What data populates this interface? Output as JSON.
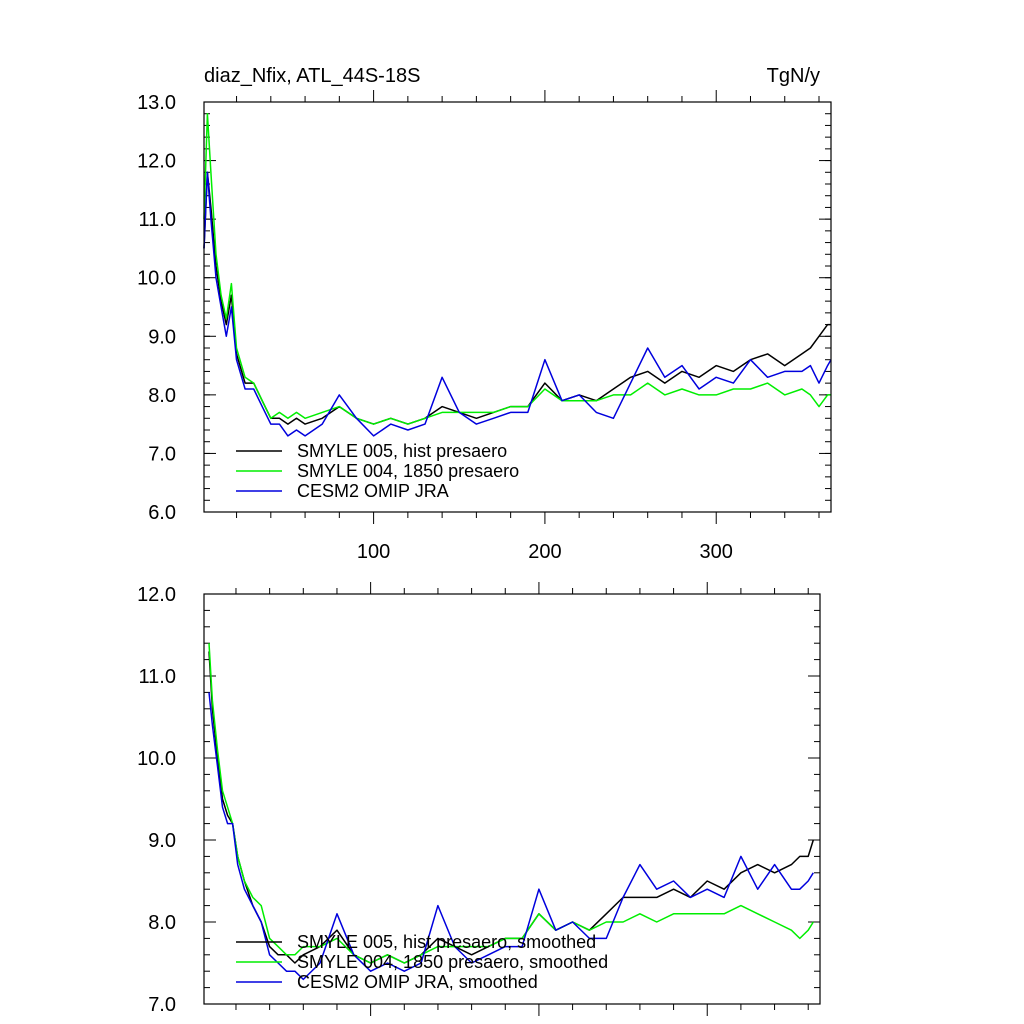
{
  "chart_data": [
    {
      "type": "line",
      "title": "diaz_Nfix, ATL_44S-18S",
      "units": "TgN/y",
      "xlim": [
        1,
        367
      ],
      "ylim": [
        6.0,
        13.0
      ],
      "xticks": [
        100,
        200,
        300
      ],
      "xtick_labels": [
        "100",
        "200",
        "300"
      ],
      "yticks": [
        6.0,
        7.0,
        8.0,
        9.0,
        10.0,
        11.0,
        12.0,
        13.0
      ],
      "ytick_labels": [
        "6.0",
        "7.0",
        "8.0",
        "9.0",
        "10.0",
        "11.0",
        "12.0",
        "13.0"
      ],
      "legend_position": "bottom-left",
      "series": [
        {
          "name": "SMYLE 005, hist presaero",
          "color": "#000000",
          "x": [
            1,
            3,
            5,
            8,
            11,
            14,
            17,
            20,
            25,
            30,
            35,
            40,
            45,
            50,
            55,
            60,
            70,
            80,
            90,
            100,
            110,
            120,
            130,
            140,
            150,
            160,
            170,
            180,
            190,
            200,
            210,
            220,
            230,
            240,
            250,
            260,
            270,
            280,
            290,
            300,
            310,
            320,
            330,
            340,
            350,
            355,
            360,
            365,
            367
          ],
          "y": [
            10.5,
            11.8,
            11.2,
            10.2,
            9.6,
            9.2,
            9.7,
            8.7,
            8.2,
            8.2,
            7.9,
            7.6,
            7.6,
            7.5,
            7.6,
            7.5,
            7.6,
            7.8,
            7.6,
            7.5,
            7.6,
            7.5,
            7.6,
            7.8,
            7.7,
            7.6,
            7.7,
            7.8,
            7.8,
            8.2,
            7.9,
            8.0,
            7.9,
            8.1,
            8.3,
            8.4,
            8.2,
            8.4,
            8.3,
            8.5,
            8.4,
            8.6,
            8.7,
            8.5,
            8.7,
            8.8,
            9.0,
            9.2,
            9.2
          ]
        },
        {
          "name": "SMYLE 004, 1850 presaero",
          "color": "#00ee00",
          "x": [
            1,
            3,
            5,
            8,
            11,
            14,
            17,
            20,
            25,
            30,
            35,
            40,
            45,
            50,
            55,
            60,
            70,
            80,
            90,
            100,
            110,
            120,
            130,
            140,
            150,
            160,
            170,
            180,
            190,
            200,
            210,
            220,
            230,
            240,
            250,
            260,
            270,
            280,
            290,
            300,
            310,
            320,
            330,
            340,
            350,
            355,
            360,
            365,
            367
          ],
          "y": [
            11.0,
            12.8,
            11.8,
            10.4,
            9.7,
            9.3,
            9.9,
            8.8,
            8.3,
            8.2,
            7.9,
            7.6,
            7.7,
            7.6,
            7.7,
            7.6,
            7.7,
            7.8,
            7.6,
            7.5,
            7.6,
            7.5,
            7.6,
            7.7,
            7.7,
            7.7,
            7.7,
            7.8,
            7.8,
            8.1,
            7.9,
            7.9,
            7.9,
            8.0,
            8.0,
            8.2,
            8.0,
            8.1,
            8.0,
            8.0,
            8.1,
            8.1,
            8.2,
            8.0,
            8.1,
            8.0,
            7.8,
            8.0,
            8.0
          ]
        },
        {
          "name": "CESM2 OMIP JRA",
          "color": "#0000dd",
          "x": [
            1,
            3,
            5,
            8,
            11,
            14,
            17,
            20,
            25,
            30,
            35,
            40,
            45,
            50,
            55,
            60,
            70,
            80,
            90,
            100,
            110,
            120,
            130,
            140,
            150,
            160,
            170,
            180,
            190,
            200,
            210,
            220,
            230,
            240,
            250,
            260,
            270,
            280,
            290,
            300,
            310,
            320,
            330,
            340,
            350,
            355,
            360,
            365,
            367
          ],
          "y": [
            10.5,
            11.8,
            11.0,
            10.0,
            9.5,
            9.0,
            9.5,
            8.6,
            8.1,
            8.1,
            7.8,
            7.5,
            7.5,
            7.3,
            7.4,
            7.3,
            7.5,
            8.0,
            7.6,
            7.3,
            7.5,
            7.4,
            7.5,
            8.3,
            7.7,
            7.5,
            7.6,
            7.7,
            7.7,
            8.6,
            7.9,
            8.0,
            7.7,
            7.6,
            8.2,
            8.8,
            8.3,
            8.5,
            8.1,
            8.3,
            8.2,
            8.6,
            8.3,
            8.4,
            8.4,
            8.5,
            8.2,
            8.5,
            8.6
          ]
        }
      ]
    },
    {
      "type": "line",
      "xlim": [
        1,
        367
      ],
      "ylim": [
        7.0,
        12.0
      ],
      "xticks": [
        100,
        200,
        300
      ],
      "yticks": [
        7.0,
        8.0,
        9.0,
        10.0,
        11.0,
        12.0
      ],
      "ytick_labels": [
        "7.0",
        "8.0",
        "9.0",
        "10.0",
        "11.0",
        "12.0"
      ],
      "legend_position": "bottom-left",
      "series": [
        {
          "name": "SMYLE 005, hist presaero, smoothed",
          "color": "#000000",
          "x": [
            4,
            6,
            9,
            12,
            15,
            18,
            21,
            25,
            30,
            35,
            40,
            45,
            50,
            55,
            60,
            70,
            80,
            90,
            100,
            110,
            120,
            130,
            140,
            150,
            160,
            170,
            180,
            190,
            200,
            210,
            220,
            230,
            240,
            250,
            260,
            270,
            280,
            290,
            300,
            310,
            320,
            330,
            340,
            350,
            355,
            360,
            363
          ],
          "y": [
            11.3,
            10.6,
            10.0,
            9.5,
            9.3,
            9.2,
            8.8,
            8.5,
            8.2,
            8.0,
            7.7,
            7.6,
            7.6,
            7.5,
            7.6,
            7.7,
            7.9,
            7.6,
            7.5,
            7.6,
            7.5,
            7.6,
            7.8,
            7.7,
            7.6,
            7.7,
            7.8,
            7.8,
            8.1,
            7.9,
            8.0,
            7.9,
            8.1,
            8.3,
            8.3,
            8.3,
            8.4,
            8.3,
            8.5,
            8.4,
            8.6,
            8.7,
            8.6,
            8.7,
            8.8,
            8.8,
            9.0
          ]
        },
        {
          "name": "SMYLE 004, 1850 presaero, smoothed",
          "color": "#00ee00",
          "x": [
            4,
            6,
            9,
            12,
            15,
            18,
            21,
            25,
            30,
            35,
            40,
            45,
            50,
            55,
            60,
            70,
            80,
            90,
            100,
            110,
            120,
            130,
            140,
            150,
            160,
            170,
            180,
            190,
            200,
            210,
            220,
            230,
            240,
            250,
            260,
            270,
            280,
            290,
            300,
            310,
            320,
            330,
            340,
            350,
            355,
            360,
            363
          ],
          "y": [
            11.4,
            10.7,
            10.1,
            9.6,
            9.4,
            9.2,
            8.8,
            8.5,
            8.3,
            8.2,
            7.8,
            7.7,
            7.6,
            7.6,
            7.7,
            7.7,
            7.8,
            7.6,
            7.5,
            7.6,
            7.5,
            7.6,
            7.7,
            7.7,
            7.7,
            7.7,
            7.8,
            7.8,
            8.1,
            7.9,
            8.0,
            7.9,
            8.0,
            8.0,
            8.1,
            8.0,
            8.1,
            8.1,
            8.1,
            8.1,
            8.2,
            8.1,
            8.0,
            7.9,
            7.8,
            7.9,
            8.0
          ]
        },
        {
          "name": "CESM2 OMIP JRA, smoothed",
          "color": "#0000dd",
          "x": [
            4,
            6,
            9,
            12,
            15,
            18,
            21,
            25,
            30,
            35,
            40,
            45,
            50,
            55,
            60,
            70,
            80,
            90,
            100,
            110,
            120,
            130,
            140,
            150,
            160,
            170,
            180,
            190,
            200,
            210,
            220,
            230,
            240,
            250,
            260,
            270,
            280,
            290,
            300,
            310,
            320,
            330,
            340,
            350,
            355,
            360,
            363
          ],
          "y": [
            10.8,
            10.4,
            9.9,
            9.4,
            9.2,
            9.2,
            8.7,
            8.4,
            8.2,
            8.0,
            7.6,
            7.5,
            7.4,
            7.4,
            7.3,
            7.5,
            8.1,
            7.6,
            7.4,
            7.5,
            7.4,
            7.5,
            8.2,
            7.7,
            7.5,
            7.6,
            7.7,
            7.7,
            8.4,
            7.9,
            8.0,
            7.8,
            7.8,
            8.3,
            8.7,
            8.4,
            8.5,
            8.3,
            8.4,
            8.3,
            8.8,
            8.4,
            8.7,
            8.4,
            8.4,
            8.5,
            8.6
          ]
        }
      ]
    }
  ]
}
